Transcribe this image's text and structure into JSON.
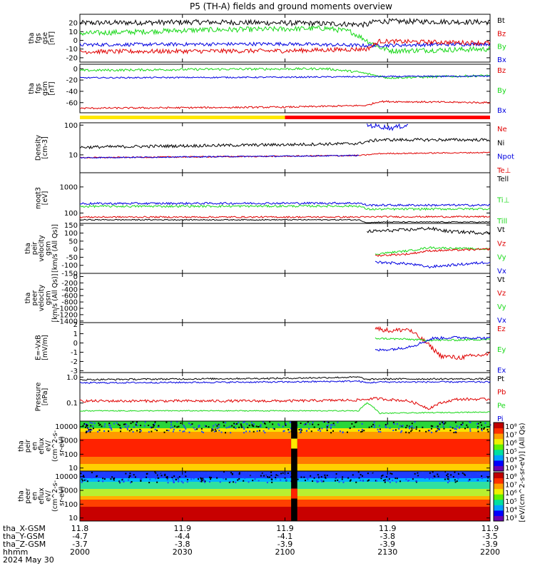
{
  "title": "P5 (TH-A) fields and ground moments overview",
  "colors": {
    "black": "#000000",
    "red": "#e00000",
    "green": "#18d818",
    "blue": "#0000e0",
    "yellow": "#ffe800",
    "bar_red": "#ff0000"
  },
  "panels": [
    {
      "id": "fgs_gse",
      "ylabel": [
        "tha",
        "fgs",
        "gse",
        "[nT]"
      ],
      "type": "linear",
      "ylim": [
        -25,
        30
      ],
      "yticks": [
        "20",
        "10",
        "0",
        "-10",
        "-20"
      ],
      "ytick_values": [
        20,
        10,
        0,
        -10,
        -20
      ],
      "legend": [
        {
          "t": "Bt",
          "c": "black"
        },
        {
          "t": "Bz",
          "c": "red"
        },
        {
          "t": "By",
          "c": "green"
        },
        {
          "t": "Bx",
          "c": "blue"
        }
      ],
      "series": [
        {
          "name": "Bt",
          "color": "black",
          "x": [
            0,
            0.3,
            0.5,
            0.63,
            0.7,
            0.72,
            1
          ],
          "y": [
            20,
            21,
            20,
            19,
            18,
            22,
            21
          ],
          "noise": 3
        },
        {
          "name": "By",
          "color": "green",
          "x": [
            0,
            0.3,
            0.5,
            0.6,
            0.66,
            0.73,
            0.76,
            1
          ],
          "y": [
            8,
            12,
            13,
            14,
            10,
            -8,
            -12,
            -10
          ],
          "noise": 3
        },
        {
          "name": "Bx",
          "color": "blue",
          "x": [
            0,
            0.5,
            0.7,
            1
          ],
          "y": [
            -5,
            -4,
            -6,
            -4
          ],
          "noise": 2
        },
        {
          "name": "Bz",
          "color": "red",
          "x": [
            0,
            0.5,
            0.7,
            0.73,
            1
          ],
          "y": [
            -13,
            -12,
            -10,
            -1,
            -3
          ],
          "noise": 2.5
        }
      ]
    },
    {
      "id": "fgs_gsm",
      "ylabel": [
        "tha",
        "fgs",
        "gsm",
        "[nT]"
      ],
      "type": "linear",
      "ylim": [
        -78,
        8
      ],
      "yticks": [
        "0",
        "-20",
        "-40",
        "-60"
      ],
      "ytick_values": [
        0,
        -20,
        -40,
        -60
      ],
      "legend": [
        {
          "t": "Bz",
          "c": "red"
        },
        {
          "t": "By",
          "c": "green"
        },
        {
          "t": "Bx",
          "c": "blue"
        }
      ],
      "series": [
        {
          "name": "By",
          "color": "green",
          "x": [
            0,
            0.3,
            0.6,
            0.68,
            0.75,
            1
          ],
          "y": [
            -3,
            -1,
            0,
            -6,
            -16,
            -12
          ],
          "noise": 2
        },
        {
          "name": "Bx",
          "color": "blue",
          "x": [
            0,
            0.5,
            0.7,
            1
          ],
          "y": [
            -16,
            -15,
            -14,
            -13
          ],
          "noise": 1.2
        },
        {
          "name": "Bz",
          "color": "red",
          "x": [
            0,
            0.5,
            0.7,
            0.73,
            1
          ],
          "y": [
            -70,
            -68,
            -65,
            -58,
            -60
          ],
          "noise": 1.5
        }
      ]
    },
    {
      "id": "density",
      "ylabel": [
        "Density",
        "[cm-3]"
      ],
      "type": "log",
      "ylim": [
        2.5,
        120
      ],
      "yticks": [
        "100",
        "10"
      ],
      "ytick_values": [
        100,
        10
      ],
      "legend": [
        {
          "t": "Ne",
          "c": "red"
        },
        {
          "t": "Ni",
          "c": "black"
        },
        {
          "t": "Npot",
          "c": "blue"
        },
        {
          "t": "Te⊥",
          "c": "red"
        }
      ],
      "series": [
        {
          "name": "Ni",
          "color": "black",
          "x": [
            0,
            0.5,
            0.68,
            0.7,
            0.73,
            1
          ],
          "y": [
            18,
            22,
            24,
            28,
            32,
            32
          ],
          "noise": 0.05
        },
        {
          "name": "Ne",
          "color": "red",
          "x": [
            0,
            0.5,
            0.68,
            0.7,
            0.73,
            1
          ],
          "y": [
            8,
            9,
            9.5,
            10,
            11,
            12
          ],
          "noise": 0.02
        },
        {
          "name": "Npot",
          "color": "blue",
          "x": [
            0,
            0.5,
            0.68
          ],
          "y": [
            8,
            9,
            9.5
          ],
          "noise": 0.02
        },
        {
          "name": "Npot_after",
          "color": "blue",
          "x": [
            0.7,
            0.73,
            0.76,
            0.8
          ],
          "y": [
            100,
            90,
            80,
            100
          ],
          "noise": 0.08
        }
      ]
    },
    {
      "id": "temp",
      "ylabel": [
        "moqt3",
        "[eV]"
      ],
      "type": "log",
      "ylim": [
        40,
        3500
      ],
      "yticks": [
        "1000",
        "100"
      ],
      "ytick_values": [
        1000,
        100
      ],
      "legend": [
        {
          "t": "Tell",
          "c": "black"
        },
        {
          "t": "Ti⊥",
          "c": "green"
        },
        {
          "t": "Till",
          "c": "green"
        }
      ],
      "series": [
        {
          "name": "Ti",
          "color": "blue",
          "x": [
            0,
            0.68,
            0.7,
            0.73,
            1
          ],
          "y": [
            230,
            240,
            200,
            200,
            200
          ],
          "noise": 0.04
        },
        {
          "name": "Tiperp",
          "color": "green",
          "x": [
            0,
            0.68,
            0.7,
            0.73,
            1
          ],
          "y": [
            180,
            185,
            140,
            140,
            145
          ],
          "noise": 0.04
        },
        {
          "name": "Te",
          "color": "red",
          "x": [
            0,
            0.68,
            0.7,
            0.73,
            1
          ],
          "y": [
            70,
            70,
            70,
            72,
            72
          ],
          "noise": 0.03
        },
        {
          "name": "Tell",
          "color": "black",
          "x": [
            0,
            0.68,
            0.7,
            0.73,
            1
          ],
          "y": [
            55,
            55,
            42,
            45,
            45
          ],
          "noise": 0.02
        }
      ]
    },
    {
      "id": "peir_vel",
      "ylabel": [
        "tha",
        "peir",
        "velocity",
        "gsm",
        "[km/s (All Qs)]"
      ],
      "type": "linear",
      "ylim": [
        -150,
        160
      ],
      "yticks": [
        "150",
        "100",
        "50",
        "0",
        "-50",
        "-100",
        "-150"
      ],
      "ytick_values": [
        150,
        100,
        50,
        0,
        -50,
        -100,
        -150
      ],
      "legend": [
        {
          "t": "Vt",
          "c": "black"
        },
        {
          "t": "Vz",
          "c": "red"
        },
        {
          "t": "Vy",
          "c": "green"
        },
        {
          "t": "Vx",
          "c": "blue"
        }
      ],
      "series": [
        {
          "name": "Vt",
          "color": "black",
          "x": [
            0.7,
            0.8,
            0.85,
            0.9,
            1
          ],
          "y": [
            110,
            120,
            130,
            110,
            100
          ],
          "noise": 10
        },
        {
          "name": "Vy",
          "color": "green",
          "x": [
            0.72,
            0.8,
            0.85,
            1
          ],
          "y": [
            -30,
            -10,
            10,
            0
          ],
          "noise": 6
        },
        {
          "name": "Vz",
          "color": "red",
          "x": [
            0.72,
            0.8,
            0.85,
            1
          ],
          "y": [
            -40,
            -30,
            -10,
            0
          ],
          "noise": 6
        },
        {
          "name": "Vx",
          "color": "blue",
          "x": [
            0.72,
            0.8,
            0.85,
            1
          ],
          "y": [
            -80,
            -90,
            -110,
            -80
          ],
          "noise": 8
        }
      ]
    },
    {
      "id": "peer_vel",
      "ylabel": [
        "tha",
        "peer",
        "velocity",
        "gsm",
        "[km/s (All Qs)]"
      ],
      "type": "linear",
      "ylim": [
        -1450,
        100
      ],
      "yticks": [
        "0",
        "-200",
        "-400",
        "-600",
        "-800",
        "-1000",
        "-1200",
        "-1400"
      ],
      "ytick_values": [
        0,
        -200,
        -400,
        -600,
        -800,
        -1000,
        -1200,
        -1400
      ],
      "legend": [
        {
          "t": "Vt",
          "c": "black"
        },
        {
          "t": "Vz",
          "c": "red"
        },
        {
          "t": "Vy",
          "c": "green"
        },
        {
          "t": "Vx",
          "c": "blue"
        }
      ],
      "series": []
    },
    {
      "id": "exb",
      "ylabel": [
        "E=-VxB",
        "[mV/m]"
      ],
      "type": "linear",
      "ylim": [
        -3.2,
        2.2
      ],
      "yticks": [
        "2",
        "1",
        "0",
        "-1",
        "-2",
        "-3"
      ],
      "ytick_values": [
        2,
        1,
        0,
        -1,
        -2,
        -3
      ],
      "legend": [
        {
          "t": "Ez",
          "c": "red"
        },
        {
          "t": "Ey",
          "c": "green"
        },
        {
          "t": "Ex",
          "c": "blue"
        }
      ],
      "series": [
        {
          "name": "Ez",
          "color": "red",
          "x": [
            0.72,
            0.76,
            0.8,
            0.84,
            0.88,
            0.92,
            1
          ],
          "y": [
            1.6,
            1.3,
            1.5,
            0.2,
            -1.4,
            -1.6,
            -1.2
          ],
          "noise": 0.25
        },
        {
          "name": "Ey",
          "color": "green",
          "x": [
            0.72,
            0.8,
            0.84,
            0.9,
            1
          ],
          "y": [
            0.5,
            0.4,
            0.3,
            0.3,
            0.4
          ],
          "noise": 0.1
        },
        {
          "name": "Ex",
          "color": "blue",
          "x": [
            0.72,
            0.78,
            0.82,
            0.86,
            0.92,
            1
          ],
          "y": [
            -0.8,
            -0.6,
            -0.2,
            0.5,
            0.6,
            0.5
          ],
          "noise": 0.15
        }
      ]
    },
    {
      "id": "pressure",
      "ylabel": [
        "Pressure",
        "[nPa]"
      ],
      "type": "log",
      "ylim": [
        0.02,
        1.5
      ],
      "yticks": [
        "1.0",
        "0.1"
      ],
      "ytick_values": [
        1,
        0.1
      ],
      "legend": [
        {
          "t": "Pt",
          "c": "black"
        },
        {
          "t": "Pb",
          "c": "red"
        },
        {
          "t": "Pe",
          "c": "green"
        },
        {
          "t": "Pi",
          "c": "blue"
        }
      ],
      "series": [
        {
          "name": "Pt",
          "color": "black",
          "x": [
            0,
            0.5,
            0.68,
            0.7,
            0.73,
            1
          ],
          "y": [
            0.8,
            0.9,
            1.0,
            0.8,
            0.85,
            0.85
          ],
          "noise": 0.03
        },
        {
          "name": "Pi",
          "color": "blue",
          "x": [
            0,
            0.5,
            0.68,
            0.7,
            0.73,
            1
          ],
          "y": [
            0.6,
            0.65,
            0.7,
            0.6,
            0.65,
            0.65
          ],
          "noise": 0.03
        },
        {
          "name": "Pb",
          "color": "red",
          "x": [
            0,
            0.5,
            0.68,
            0.72,
            0.8,
            0.85,
            0.88,
            0.92,
            1
          ],
          "y": [
            0.12,
            0.12,
            0.13,
            0.15,
            0.12,
            0.06,
            0.1,
            0.14,
            0.14
          ],
          "noise": 0.05
        },
        {
          "name": "Pe",
          "color": "green",
          "x": [
            0,
            0.5,
            0.68,
            0.7,
            0.73,
            1
          ],
          "y": [
            0.05,
            0.05,
            0.05,
            0.1,
            0.04,
            0.045
          ],
          "noise": 0.02
        }
      ]
    },
    {
      "id": "peir_en",
      "ylabel": [
        "tha",
        "peir",
        "en",
        "eflux",
        "eV/",
        "(cm^2-s-",
        "sr-eV)"
      ],
      "type": "spectrogram",
      "yticks": [
        "10000",
        "1000",
        "100",
        "10"
      ],
      "ytick_values": [
        10000,
        1000,
        100,
        10
      ],
      "legend": []
    },
    {
      "id": "peer_en",
      "ylabel": [
        "tha",
        "peer",
        "en",
        "eflux",
        "eV/",
        "(cm^2-s-",
        "sr-eV)"
      ],
      "type": "spectrogram",
      "yticks": [
        "10000",
        "1000",
        "100",
        "10"
      ],
      "ytick_values": [
        10000,
        1000,
        100,
        10
      ],
      "legend": []
    }
  ],
  "colorbars": [
    {
      "labels": [
        "10⁸",
        "10⁷",
        "10⁶",
        "10⁵",
        "10⁴",
        "10³"
      ]
    },
    {
      "labels": [
        "10⁸",
        "10⁷",
        "10⁶",
        "10⁵",
        "10⁴",
        "10³"
      ]
    }
  ],
  "colorbar_title": "[eV/(cm^2-s-sr-eV)] (All Qs)",
  "xaxis": {
    "rows": [
      {
        "label": "tha_X-GSM",
        "values": [
          "11.8",
          "11.9",
          "11.9",
          "11.9",
          "11.9"
        ]
      },
      {
        "label": "tha_Y-GSM",
        "values": [
          "-4.7",
          "-4.4",
          "-4.1",
          "-3.8",
          "-3.5"
        ]
      },
      {
        "label": "tha_Z-GSM",
        "values": [
          "-3.7",
          "-3.8",
          "-3.9",
          "-3.9",
          "-3.9"
        ]
      },
      {
        "label": "hhmm",
        "values": [
          "2000",
          "2030",
          "2100",
          "2130",
          "2200"
        ]
      }
    ],
    "date": "2024 May 30"
  },
  "mode_bar": [
    {
      "color": "yellow",
      "from": 0,
      "to": 0.5
    },
    {
      "color": "bar_red",
      "from": 0.5,
      "to": 1
    }
  ]
}
